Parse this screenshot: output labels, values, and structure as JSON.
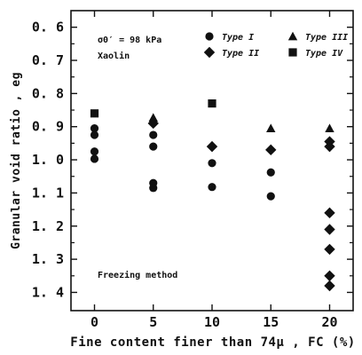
{
  "chart_data": {
    "type": "scatter",
    "xlabel": "Fine content finer than 74μ , FC (%)",
    "ylabel": "Granular void ratio , eg",
    "x_ticks": [
      "0",
      "5",
      "10",
      "15",
      "20"
    ],
    "y_ticks": [
      "0. 6",
      "0. 7",
      "0. 8",
      "0. 9",
      "1. 0",
      "1. 1",
      "1. 2",
      "1. 3",
      "1. 4"
    ],
    "xlim": [
      -2,
      22
    ],
    "ylim": [
      0.55,
      1.455
    ],
    "y_inverted": true,
    "grid": false,
    "legend_position": "top-right",
    "annotations": {
      "stress": "σ0′ = 98 kPa",
      "material": "Xaolin",
      "method": "Freezing method"
    },
    "series": [
      {
        "name": "Type I",
        "marker": "circle",
        "points": [
          [
            0,
            0.905
          ],
          [
            0,
            0.925
          ],
          [
            0,
            0.975
          ],
          [
            0,
            0.997
          ],
          [
            5,
            0.925
          ],
          [
            5,
            0.96
          ],
          [
            5,
            1.07
          ],
          [
            5,
            1.085
          ],
          [
            10,
            1.01
          ],
          [
            10,
            1.082
          ],
          [
            15,
            1.038
          ],
          [
            15,
            1.11
          ]
        ]
      },
      {
        "name": "Type II",
        "marker": "diamond",
        "points": [
          [
            5,
            0.89
          ],
          [
            10,
            0.96
          ],
          [
            15,
            0.97
          ],
          [
            20,
            0.945
          ],
          [
            20,
            0.96
          ],
          [
            20,
            1.16
          ],
          [
            20,
            1.21
          ],
          [
            20,
            1.27
          ],
          [
            20,
            1.35
          ],
          [
            20,
            1.38
          ]
        ]
      },
      {
        "name": "Type III",
        "marker": "triangle",
        "points": [
          [
            5,
            0.873
          ],
          [
            15,
            0.905
          ],
          [
            20,
            0.905
          ]
        ]
      },
      {
        "name": "Type IV",
        "marker": "square",
        "points": [
          [
            0,
            0.86
          ],
          [
            10,
            0.83
          ]
        ]
      }
    ]
  }
}
